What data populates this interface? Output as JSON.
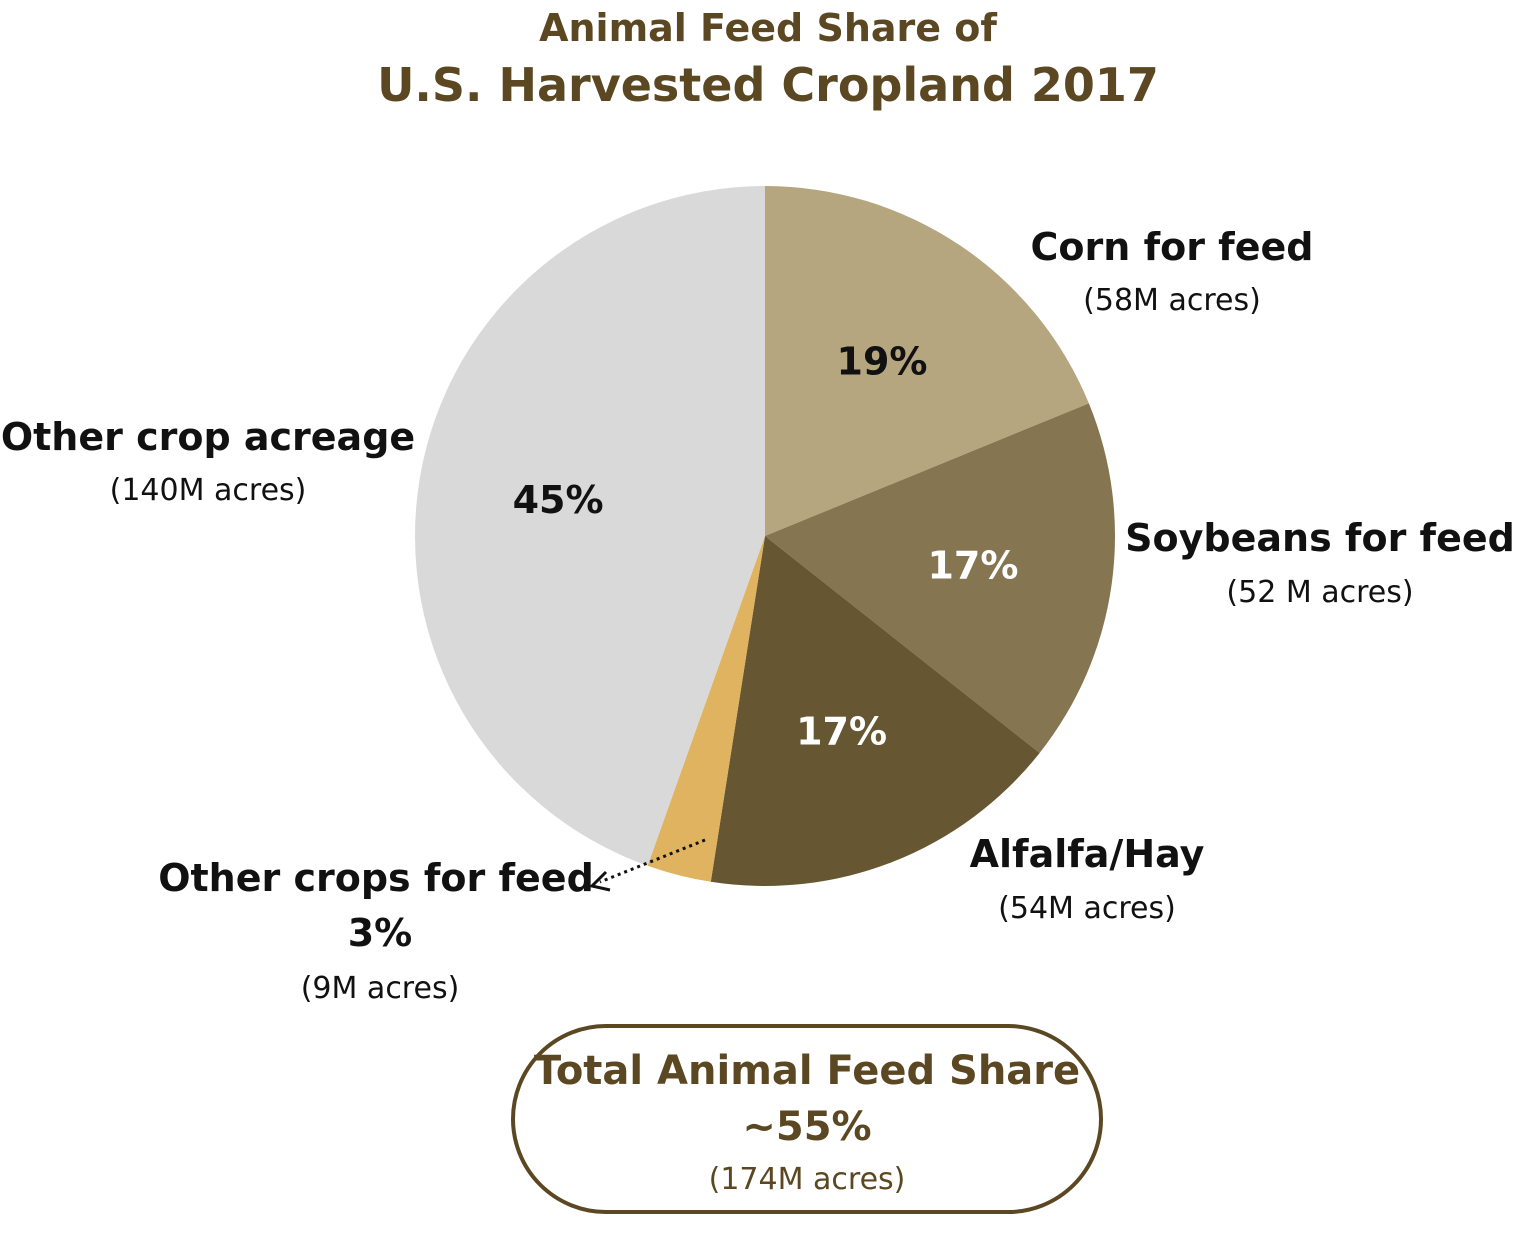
{
  "title_line1": "Animal Feed Share of",
  "title_line2": "U.S. Harvested Cropland 2017",
  "chart_data": {
    "type": "pie",
    "slices": [
      {
        "label": "Corn for feed",
        "percent": 19,
        "percent_label": "19%",
        "acres_label": "(58M acres)",
        "acres_millions": 58,
        "color": "#b6a680",
        "text_color": "#111111"
      },
      {
        "label": "Soybeans for feed",
        "percent": 17,
        "percent_label": "17%",
        "acres_label": "(52 M acres)",
        "acres_millions": 52,
        "color": "#857651",
        "text_color": "#ffffff"
      },
      {
        "label": "Alfalfa/Hay",
        "percent": 17,
        "percent_label": "17%",
        "acres_label": "(54M acres)",
        "acres_millions": 54,
        "color": "#665632",
        "text_color": "#ffffff"
      },
      {
        "label": "Other crops for feed",
        "percent": 3,
        "percent_label": "3%",
        "acres_label": "(9M acres)",
        "acres_millions": 9,
        "color": "#e0b360",
        "text_color": "#111111"
      },
      {
        "label": "Other crop acreage",
        "percent": 45,
        "percent_label": "45%",
        "acres_label": "(140M acres)",
        "acres_millions": 140,
        "color": "#d9d9d9",
        "text_color": "#111111"
      }
    ]
  },
  "total": {
    "title": "Total Animal Feed Share",
    "value": "~55%",
    "acres": "(174M acres)"
  },
  "colors": {
    "accent": "#5b4722"
  }
}
